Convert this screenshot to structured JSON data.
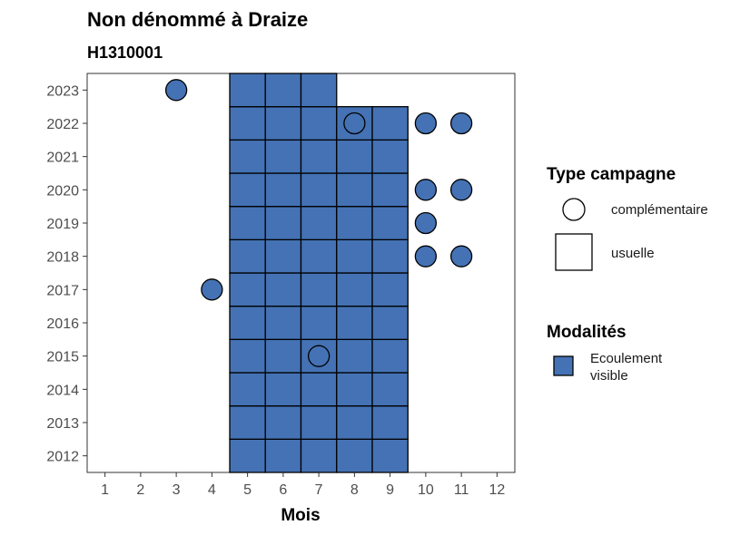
{
  "chart_data": {
    "type": "heatmap",
    "title": "Non dénommé à Draize",
    "subtitle": "H1310001",
    "xlabel": "Mois",
    "ylabel": "",
    "x_ticks": [
      "1",
      "2",
      "3",
      "4",
      "5",
      "6",
      "7",
      "8",
      "9",
      "10",
      "11",
      "12"
    ],
    "y_ticks": [
      "2012",
      "2013",
      "2014",
      "2015",
      "2016",
      "2017",
      "2018",
      "2019",
      "2020",
      "2021",
      "2022",
      "2023"
    ],
    "xlim": [
      0.5,
      12.5
    ],
    "ylim": [
      2011.5,
      2023.5
    ],
    "fill_color": "#4472b4",
    "legend": {
      "type_title": "Type campagne",
      "type_items": [
        "complémentaire",
        "usuelle"
      ],
      "modalite_title": "Modalités",
      "modalite_label": "Ecoulement visible"
    },
    "usuelle": [
      {
        "year": 2012,
        "months": [
          5,
          6,
          7,
          8,
          9
        ]
      },
      {
        "year": 2013,
        "months": [
          5,
          6,
          7,
          8,
          9
        ]
      },
      {
        "year": 2014,
        "months": [
          5,
          6,
          7,
          8,
          9
        ]
      },
      {
        "year": 2015,
        "months": [
          5,
          6,
          7,
          8,
          9
        ]
      },
      {
        "year": 2016,
        "months": [
          5,
          6,
          7,
          8,
          9
        ]
      },
      {
        "year": 2017,
        "months": [
          5,
          6,
          7,
          8,
          9
        ]
      },
      {
        "year": 2018,
        "months": [
          5,
          6,
          7,
          8,
          9
        ]
      },
      {
        "year": 2019,
        "months": [
          5,
          6,
          7,
          8,
          9
        ]
      },
      {
        "year": 2020,
        "months": [
          5,
          6,
          7,
          8,
          9
        ]
      },
      {
        "year": 2021,
        "months": [
          5,
          6,
          7,
          8,
          9
        ]
      },
      {
        "year": 2022,
        "months": [
          5,
          6,
          7,
          8,
          9
        ]
      },
      {
        "year": 2023,
        "months": [
          5,
          6,
          7
        ]
      }
    ],
    "complementaire": [
      {
        "year": 2023,
        "month": 3
      },
      {
        "year": 2022,
        "month": 8
      },
      {
        "year": 2022,
        "month": 10
      },
      {
        "year": 2022,
        "month": 11
      },
      {
        "year": 2020,
        "month": 10
      },
      {
        "year": 2020,
        "month": 11
      },
      {
        "year": 2019,
        "month": 10
      },
      {
        "year": 2018,
        "month": 10
      },
      {
        "year": 2018,
        "month": 11
      },
      {
        "year": 2017,
        "month": 4
      },
      {
        "year": 2015,
        "month": 7
      }
    ]
  }
}
